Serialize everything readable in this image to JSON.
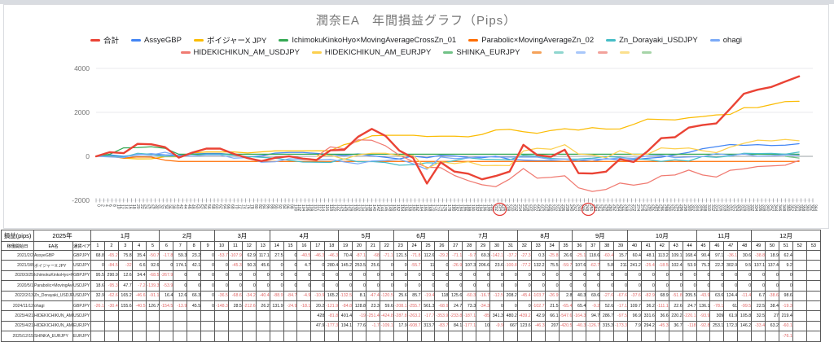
{
  "page": {
    "title": "潤奈EA　年間損益グラフ（Pips）"
  },
  "colors": {
    "total_line": "#ea4335",
    "negative_text": "#e06666",
    "grid": "#e8eaed",
    "zero_axis": "#9aa0a6",
    "muted_text": "#757575",
    "annotation_red": "#e53935"
  },
  "legend": {
    "row1": [
      {
        "label": "合計",
        "color": "#ea4335"
      },
      {
        "label": "AssyeGBP",
        "color": "#4285f4"
      },
      {
        "label": "ボイジャーX JPY",
        "color": "#fbbc04"
      },
      {
        "label": "IchimokuKinkoHyo×MovingAverageCrossZn_01",
        "color": "#34a853"
      },
      {
        "label": "Parabolic×MovingAverageZn_02",
        "color": "#ff6d01"
      },
      {
        "label": "Zn_Dorayaki_USDJPY",
        "color": "#46bdc6"
      },
      {
        "label": "ohagi",
        "color": "#7baaf7"
      }
    ],
    "row2": [
      {
        "label": "HIDEKICHIKUN_AM_USDJPY",
        "color": "#f07b72"
      },
      {
        "label": "HIDEKICHIKUN_AM_EURJPY",
        "color": "#fcd04f"
      },
      {
        "label": "SHINKA_EURJPY",
        "color": "#71c287"
      },
      {
        "label": "",
        "color": "#f5a25a"
      },
      {
        "label": "",
        "color": "#8fd6cf"
      },
      {
        "label": "",
        "color": "#a8c7fa"
      },
      {
        "label": "",
        "color": "#f2a29b"
      },
      {
        "label": "",
        "color": "#fbe08e"
      },
      {
        "label": "",
        "color": "#a6d4a8"
      }
    ]
  },
  "chart_data": {
    "type": "line",
    "title": "潤奈EA　年間損益グラフ（Pips）",
    "ylabel": "Pips",
    "ylim": [
      -2000,
      4000
    ],
    "y_ticks": [
      4000,
      2000,
      0,
      -2000
    ],
    "x_ticks": {
      "start": 0,
      "end": 364,
      "step": 2
    },
    "x_unit": "day_of_year",
    "grid": true,
    "legend_position": "top",
    "annotations": [
      {
        "type": "ellipse",
        "day": 205
      },
      {
        "type": "ellipse",
        "day": 250
      }
    ],
    "series_note": "Each line is the cumulative sum of the weekly pips values listed in table.rows (x = week*7 days). 合計 (total) is the cumulative sum across all EAs, ending near 3636 pips."
  },
  "table": {
    "corner_label": "損益(pips)",
    "year_label": "2025年",
    "header": {
      "start_date": "稼働開始日",
      "ea_name": "EA名",
      "pair": "通貨ペア"
    },
    "months": [
      {
        "label": "1月",
        "span": 5
      },
      {
        "label": "2月",
        "span": 4
      },
      {
        "label": "3月",
        "span": 4
      },
      {
        "label": "4月",
        "span": 5
      },
      {
        "label": "5月",
        "span": 4
      },
      {
        "label": "6月",
        "span": 4
      },
      {
        "label": "7月",
        "span": 5
      },
      {
        "label": "8月",
        "span": 4
      },
      {
        "label": "9月",
        "span": 4
      },
      {
        "label": "10月",
        "span": 5
      },
      {
        "label": "11月",
        "span": 4
      },
      {
        "label": "12月",
        "span": 5
      }
    ],
    "weeks_total": 53,
    "rows": [
      {
        "start_date": "2021/2/2",
        "ea": "AssyeGBP",
        "pair": "GBPJPY",
        "color": "#4285f4",
        "values": [
          68.8,
          -65.2,
          75.8,
          35.4,
          -50.7,
          -17.8,
          59.3,
          23.2,
          0,
          -53.7,
          -107.9,
          62.9,
          117.1,
          27.5,
          0,
          -40.5,
          -46.3,
          -46.3,
          70.4,
          -87.1,
          -68,
          -71.1,
          121.5,
          -71.8,
          112.6,
          -29.2,
          -71.1,
          -9.7,
          69.3,
          -142.1,
          -37.2,
          -27.3,
          0.3,
          -25.8,
          26.6,
          -25.1,
          118.6,
          -60.4,
          15.7,
          60.4,
          48.1,
          113.2,
          109.1,
          168.4,
          90.4,
          97.1,
          -36.1,
          30.6,
          -38.8,
          18.9,
          62.4,
          null,
          null
        ]
      },
      {
        "start_date": "2021/3/8",
        "ea": "ボイジャーX JPY",
        "pair": "USDJPY",
        "color": "#fbbc04",
        "values": [
          0,
          -84.5,
          -32,
          6.6,
          92.6,
          0,
          174.1,
          42.1,
          0,
          0,
          -45.3,
          50.3,
          45.6,
          0,
          0,
          4.7,
          0,
          280.4,
          145.2,
          253.5,
          25.6,
          0,
          0,
          -55.7,
          11,
          0,
          -26.9,
          107.3,
          206.6,
          23.6,
          -100.8,
          -77.2,
          132.2,
          75.5,
          -59.7,
          107.6,
          -62.7,
          5.8,
          211,
          241.2,
          -25.4,
          -18.5,
          102.4,
          53.9,
          75.2,
          22.2,
          302.9,
          9.5,
          137.1,
          137.4,
          9.2,
          null,
          null
        ]
      },
      {
        "start_date": "2020/3/25",
        "ea": "IchimokuKinkoHyo×MovingAverageCrossZn_01",
        "pair": "GBPJPY",
        "color": "#34a853",
        "values": [
          95.5,
          290.9,
          12.6,
          34.4,
          -68.5,
          -267.9,
          0,
          0,
          0,
          0,
          0,
          0,
          0,
          0,
          0,
          0,
          0,
          0,
          0,
          0,
          0,
          0,
          0,
          0,
          0,
          0,
          0,
          0,
          0,
          0,
          0,
          0,
          0,
          0,
          0,
          0,
          0,
          0,
          0,
          0,
          0,
          0,
          0,
          0,
          0,
          0,
          0,
          0,
          0,
          0,
          0,
          null,
          null
        ]
      },
      {
        "start_date": "2020/5/1",
        "ea": "Parabolic×MovingAverageZn_02",
        "pair": "USDJPY",
        "color": "#ff6d01",
        "values": [
          18.6,
          -95.3,
          47.7,
          -7.2,
          -139.3,
          -53.9,
          0,
          0,
          0,
          0,
          0,
          0,
          0,
          0,
          0,
          0,
          0,
          0,
          0,
          0,
          0,
          0,
          0,
          0,
          0,
          0,
          0,
          0,
          0,
          0,
          0,
          0,
          0,
          0,
          0,
          0,
          0,
          0,
          0,
          0,
          0,
          0,
          0,
          0,
          0,
          0,
          0,
          0,
          0,
          0,
          0,
          null,
          null
        ]
      },
      {
        "start_date": "2022/2/13",
        "ea": "Zn_Dorayaki_USDJPY",
        "pair": "USDJPY",
        "color": "#46bdc6",
        "values": [
          32.9,
          -62.6,
          165.2,
          -46.6,
          -91.1,
          16.4,
          12.6,
          66.3,
          0,
          -36.5,
          -68.6,
          -34.2,
          -40.4,
          -88.9,
          -84.7,
          -4.9,
          -10.9,
          165.2,
          -132.5,
          8.1,
          -47.4,
          -120.5,
          25.6,
          85.7,
          -19.4,
          118,
          125.6,
          -60.3,
          -16.7,
          -12.5,
          208.2,
          -45.4,
          -103.7,
          -26.9,
          2.8,
          40.3,
          69.6,
          -27.6,
          -67.6,
          -37.6,
          -82.9,
          68.9,
          -51.8,
          205.5,
          -43.9,
          63.6,
          124.4,
          -11.4,
          6.7,
          -38.6,
          98.6,
          null,
          null
        ]
      },
      {
        "start_date": "2024/11/12",
        "ea": "ohagi",
        "pair": "GBPJPY",
        "color": "#7baaf7",
        "values": [
          -26.1,
          -30.4,
          155.6,
          -40.5,
          126.7,
          -154.5,
          -13.9,
          45.5,
          0,
          -148.3,
          28.5,
          -212.6,
          26.2,
          131.9,
          -24.9,
          -18.1,
          20.2,
          -121.9,
          -84.8,
          128.8,
          23.3,
          59.6,
          -208.1,
          -255.7,
          561.3,
          -68.9,
          24.7,
          73.3,
          -34.3,
          0,
          0,
          0,
          -102.7,
          21.5,
          -65.4,
          65.4,
          -9.2,
          52.6,
          -17.1,
          109.7,
          36.2,
          -111.1,
          22.6,
          24.7,
          136.1,
          -78.1,
          61,
          -99.5,
          22.5,
          38.4,
          -19.3,
          null,
          null
        ]
      },
      {
        "start_date": "2025/4/21",
        "ea": "HIDEKICHIKUN_AM_USDJPY",
        "pair": "USDJPY",
        "color": "#f07b72",
        "values": [
          null,
          null,
          null,
          null,
          null,
          null,
          null,
          null,
          null,
          null,
          null,
          null,
          null,
          null,
          null,
          null,
          428,
          -81.8,
          401.4,
          -19,
          -251.4,
          -424.8,
          -287.8,
          -263.2,
          -17.7,
          -353.9,
          -233.8,
          -187.1,
          -85,
          341.3,
          480.2,
          -439.2,
          42.9,
          66.1,
          -547.6,
          -164.3,
          94.7,
          286.7,
          -97.5,
          96.9,
          331.6,
          36.6,
          220.2,
          -220.1,
          -93.9,
          309,
          61.9,
          105.8,
          32.5,
          27,
          219.4,
          null,
          null
        ]
      },
      {
        "start_date": "2025/4/21",
        "ea": "HIDEKICHIKUN_AM_EURJPY",
        "pair": "EURJPY",
        "color": "#fcd04f",
        "values": [
          null,
          null,
          null,
          null,
          null,
          null,
          null,
          null,
          null,
          null,
          null,
          null,
          null,
          null,
          null,
          null,
          47.9,
          -177.3,
          194.1,
          77.6,
          -1.7,
          -109.1,
          17.9,
          -608.7,
          313.7,
          -83.7,
          84.1,
          -177.1,
          10,
          -9.9,
          667,
          123.6,
          -46.3,
          207,
          -420.5,
          -40.3,
          -126.7,
          315.3,
          -173.3,
          7.9,
          294.2,
          -45.3,
          36.7,
          -118,
          -92.8,
          253.1,
          172.3,
          146.2,
          -33.4,
          63.2,
          -60.1,
          null,
          null
        ]
      },
      {
        "start_date": "2025/12/15",
        "ea": "SHINKA_EURJPY",
        "pair": "EURJPY",
        "color": "#71c287",
        "values": [
          null,
          null,
          null,
          null,
          null,
          null,
          null,
          null,
          null,
          null,
          null,
          null,
          null,
          null,
          null,
          null,
          null,
          null,
          null,
          null,
          null,
          null,
          null,
          null,
          null,
          null,
          null,
          null,
          null,
          null,
          null,
          null,
          null,
          null,
          null,
          null,
          null,
          null,
          null,
          null,
          null,
          null,
          null,
          null,
          null,
          null,
          null,
          null,
          null,
          null,
          -76.1,
          null,
          null
        ]
      }
    ]
  },
  "total_series": {
    "label": "合計",
    "color": "#ea4335"
  }
}
